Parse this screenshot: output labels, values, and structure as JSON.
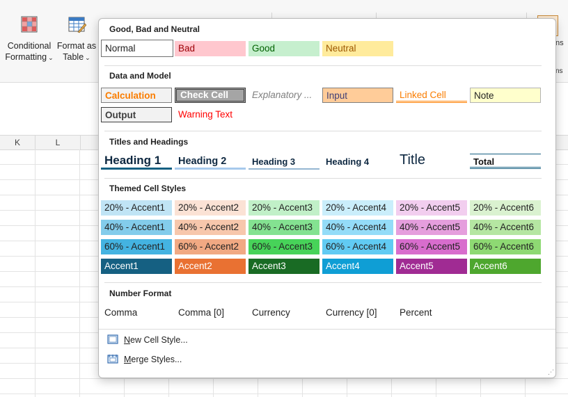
{
  "ribbon": {
    "conditional_formatting": {
      "line1": "Conditional",
      "line2": "Formatting"
    },
    "format_as_table": {
      "line1": "Format as",
      "line2": "Table"
    },
    "partial_right_1": "ns",
    "partial_right_2": "ns"
  },
  "sheet": {
    "columns": [
      "K",
      "L"
    ]
  },
  "gallery": {
    "sections": {
      "good_bad": "Good, Bad and Neutral",
      "data_model": "Data and Model",
      "titles": "Titles and Headings",
      "themed": "Themed Cell Styles",
      "number": "Number Format"
    },
    "good_bad_styles": [
      "Normal",
      "Bad",
      "Good",
      "Neutral"
    ],
    "data_model_styles": [
      "Calculation",
      "Check Cell",
      "Explanatory ...",
      "Input",
      "Linked Cell",
      "Note",
      "Output",
      "Warning Text"
    ],
    "title_styles": [
      "Heading 1",
      "Heading 2",
      "Heading 3",
      "Heading 4",
      "Title",
      "Total"
    ],
    "themed_rows": [
      [
        "20% - Accent1",
        "20% - Accent2",
        "20% - Accent3",
        "20% - Accent4",
        "20% - Accent5",
        "20% - Accent6"
      ],
      [
        "40% - Accent1",
        "40% - Accent2",
        "40% - Accent3",
        "40% - Accent4",
        "40% - Accent5",
        "40% - Accent6"
      ],
      [
        "60% - Accent1",
        "60% - Accent2",
        "60% - Accent3",
        "60% - Accent4",
        "60% - Accent5",
        "60% - Accent6"
      ],
      [
        "Accent1",
        "Accent2",
        "Accent3",
        "Accent4",
        "Accent5",
        "Accent6"
      ]
    ],
    "number_styles": [
      "Comma",
      "Comma [0]",
      "Currency",
      "Currency [0]",
      "Percent"
    ],
    "menu": {
      "new_cell_style": {
        "u": "N",
        "rest": "ew Cell Style..."
      },
      "merge_styles": {
        "u": "M",
        "rest": "erge Styles..."
      }
    }
  },
  "colors": {
    "accent1": "#156082",
    "accent2": "#e97132",
    "accent3": "#196b24",
    "accent4": "#0f9ed5",
    "accent5": "#a02b93",
    "accent6": "#4ea72e",
    "bad_fill": "#ffc7ce",
    "good_fill": "#c6efce",
    "neutral_fill": "#ffeb9c"
  }
}
